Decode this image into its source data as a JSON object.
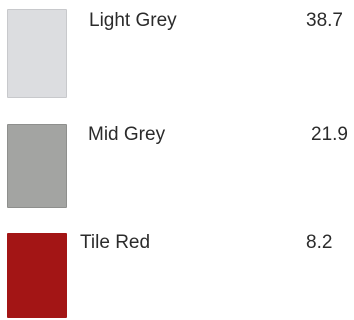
{
  "items": [
    {
      "name": "Light Grey",
      "value": "38.7",
      "color": "#dcdde0"
    },
    {
      "name": "Mid Grey",
      "value": "21.9",
      "color": "#a3a4a2"
    },
    {
      "name": "Tile Red",
      "value": "8.2",
      "color": "#a31515"
    }
  ]
}
